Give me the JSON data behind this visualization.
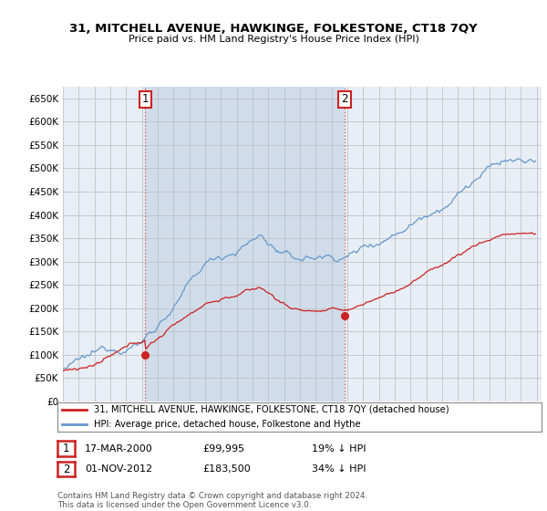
{
  "title": "31, MITCHELL AVENUE, HAWKINGE, FOLKESTONE, CT18 7QY",
  "subtitle": "Price paid vs. HM Land Registry's House Price Index (HPI)",
  "ylim": [
    0,
    675000
  ],
  "ytick_labels": [
    "£0",
    "£50K",
    "£100K",
    "£150K",
    "£200K",
    "£250K",
    "£300K",
    "£350K",
    "£400K",
    "£450K",
    "£500K",
    "£550K",
    "£600K",
    "£650K"
  ],
  "yticks": [
    0,
    50000,
    100000,
    150000,
    200000,
    250000,
    300000,
    350000,
    400000,
    450000,
    500000,
    550000,
    600000,
    650000
  ],
  "xlim_start": 1995.0,
  "xlim_end": 2025.3,
  "sale1_year": 2000.21,
  "sale1_price": 99995,
  "sale1_label": "1",
  "sale2_year": 2012.83,
  "sale2_price": 183500,
  "sale2_label": "2",
  "property_line_color": "#cc2222",
  "hpi_line_color": "#6699cc",
  "annotation_vline_color": "#dd6666",
  "grid_color": "#bbbbbb",
  "plot_bg_color": "#e8eef5",
  "shade_color": "#d0dcea",
  "background_color": "#ffffff",
  "legend_property": "31, MITCHELL AVENUE, HAWKINGE, FOLKESTONE, CT18 7QY (detached house)",
  "legend_hpi": "HPI: Average price, detached house, Folkestone and Hythe",
  "note1_label": "1",
  "note1_date": "17-MAR-2000",
  "note1_price": "£99,995",
  "note1_pct": "19% ↓ HPI",
  "note2_label": "2",
  "note2_date": "01-NOV-2012",
  "note2_price": "£183,500",
  "note2_pct": "34% ↓ HPI",
  "footer": "Contains HM Land Registry data © Crown copyright and database right 2024.\nThis data is licensed under the Open Government Licence v3.0."
}
